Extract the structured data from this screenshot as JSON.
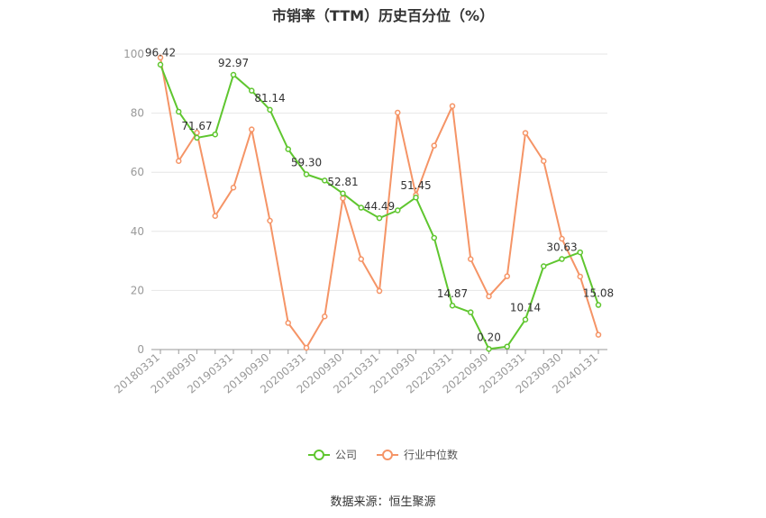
{
  "title": "市销率（TTM）历史百分位（%）",
  "source": "数据来源：恒生聚源",
  "colors": {
    "company": "#5fc62f",
    "industry": "#f59466",
    "grid": "#e6e6e6",
    "axis": "#999999"
  },
  "chart_data": {
    "type": "line",
    "x": [
      "20180331",
      "20180630",
      "20180930",
      "20181231",
      "20190331",
      "20190630",
      "20190930",
      "20191231",
      "20200331",
      "20200630",
      "20200930",
      "20201231",
      "20210331",
      "20210630",
      "20210930",
      "20211231",
      "20220331",
      "20220630",
      "20220930",
      "20221231",
      "20230331",
      "20230630",
      "20230930",
      "20231231",
      "20240131"
    ],
    "xticks": [
      "20180331",
      "20180930",
      "20190331",
      "20190930",
      "20200331",
      "20200930",
      "20210331",
      "20210930",
      "20220331",
      "20220930",
      "20230331",
      "20230930",
      "20240131"
    ],
    "ylim": [
      0,
      100
    ],
    "yticks": [
      0,
      20,
      40,
      60,
      80,
      100
    ],
    "grid": true,
    "legend_position": "bottom",
    "series": [
      {
        "name": "公司",
        "values": [
          96.42,
          80.5,
          71.67,
          72.8,
          92.97,
          87.6,
          81.14,
          67.8,
          59.3,
          57.2,
          52.81,
          48.0,
          44.49,
          47.1,
          51.45,
          37.8,
          14.87,
          12.6,
          0.2,
          1.0,
          10.14,
          28.2,
          30.63,
          32.9,
          15.08
        ],
        "labels": [
          "96.42",
          "",
          "71.67",
          "",
          "92.97",
          "",
          "81.14",
          "",
          "59.30",
          "",
          "52.81",
          "",
          "44.49",
          "",
          "51.45",
          "",
          "14.87",
          "",
          "0.20",
          "",
          "10.14",
          "",
          "30.63",
          "",
          "15.08"
        ]
      },
      {
        "name": "行业中位数",
        "values": [
          98.8,
          63.8,
          73.4,
          45.2,
          54.8,
          74.5,
          43.6,
          9.0,
          0.6,
          11.2,
          51.2,
          30.6,
          19.8,
          80.2,
          52.3,
          69.0,
          82.4,
          30.6,
          18.0,
          24.8,
          73.3,
          63.8,
          37.5,
          24.7,
          5.0
        ]
      }
    ]
  }
}
